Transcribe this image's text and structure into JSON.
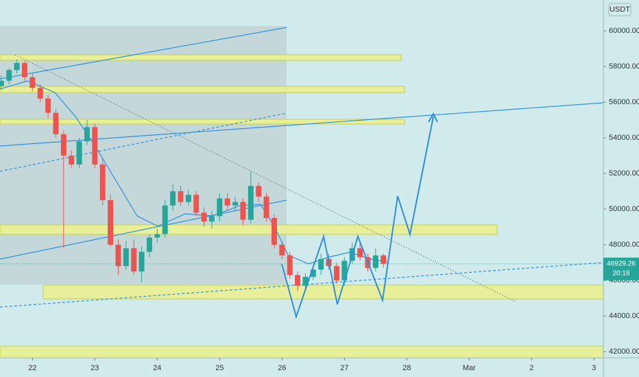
{
  "chart_data": {
    "type": "candlestick",
    "y_axis_label": "USDT",
    "x": [
      21.5,
      21.625,
      21.75,
      21.875,
      22,
      22.125,
      22.25,
      22.375,
      22.5,
      22.625,
      22.75,
      22.875,
      23,
      23.125,
      23.25,
      23.375,
      23.5,
      23.625,
      23.75,
      23.875,
      24,
      24.125,
      24.25,
      24.375,
      24.5,
      24.625,
      24.75,
      24.875,
      25,
      25.125,
      25.25,
      25.375,
      25.5,
      25.625,
      25.75,
      25.875,
      26,
      26.125,
      26.25,
      26.375,
      26.5,
      26.625,
      26.75,
      26.875,
      27,
      27.125,
      27.25,
      27.375,
      27.5,
      27.625
    ],
    "open": [
      56900,
      57200,
      57800,
      58200,
      57400,
      56800,
      56200,
      55400,
      54200,
      53000,
      52500,
      53800,
      54600,
      52500,
      50500,
      48000,
      46800,
      47800,
      46500,
      47600,
      48400,
      48600,
      50200,
      51000,
      50400,
      50800,
      49800,
      49300,
      49600,
      50600,
      50200,
      50400,
      49400,
      51300,
      50700,
      49500,
      48000,
      47400,
      46300,
      45700,
      46200,
      46600,
      47200,
      46800,
      46000,
      47100,
      47800,
      47300,
      46700,
      47400
    ],
    "high": [
      57500,
      57900,
      58400,
      58300,
      57600,
      57000,
      56400,
      55600,
      54400,
      53300,
      54000,
      55000,
      54800,
      52800,
      50800,
      48300,
      48200,
      48300,
      47900,
      48600,
      48900,
      50500,
      51400,
      51300,
      51100,
      51000,
      50100,
      49900,
      50900,
      50900,
      50700,
      50600,
      52100,
      51500,
      50900,
      49700,
      48200,
      47600,
      46500,
      46400,
      46800,
      47500,
      47500,
      47000,
      47300,
      48100,
      48200,
      47500,
      47800,
      47500
    ],
    "low": [
      56700,
      57000,
      57600,
      57200,
      56600,
      56000,
      55100,
      54000,
      47800,
      52300,
      52300,
      53600,
      52300,
      50200,
      47900,
      46300,
      46600,
      46300,
      45900,
      47300,
      48100,
      48400,
      49900,
      50200,
      50200,
      49600,
      49000,
      48900,
      49300,
      49900,
      49900,
      49100,
      49200,
      50400,
      49300,
      47800,
      47200,
      46100,
      45400,
      45500,
      46000,
      46300,
      46600,
      45800,
      45700,
      46900,
      47100,
      46500,
      46500,
      46700
    ],
    "close": [
      57200,
      57800,
      58200,
      57400,
      56800,
      56200,
      55400,
      54200,
      53000,
      52500,
      53800,
      54600,
      52500,
      50500,
      48000,
      46800,
      47800,
      46500,
      47600,
      48400,
      48600,
      50200,
      51000,
      50400,
      50800,
      49800,
      49300,
      49600,
      50600,
      50200,
      50400,
      49400,
      51300,
      50700,
      49500,
      48000,
      47400,
      46300,
      45700,
      46200,
      46600,
      47200,
      46800,
      46000,
      47100,
      47800,
      47300,
      46700,
      47400,
      46929
    ],
    "up_color": "#26a69a",
    "down_color": "#ef5350",
    "xlim": [
      21.48,
      31.15
    ],
    "xticks": [
      22,
      23,
      24,
      25,
      26,
      27,
      28,
      {
        "value": 29,
        "label": "Mar"
      },
      {
        "value": 30,
        "label": "2"
      },
      {
        "value": 31,
        "label": "3"
      }
    ],
    "ylim": [
      41654,
      61731
    ],
    "yticks": [
      {
        "value": 42000,
        "label": "42000.00"
      },
      {
        "value": 44000,
        "label": "44000.00"
      },
      {
        "value": 46000,
        "label": "46000.00"
      },
      {
        "value": 48000,
        "label": "48000.00"
      },
      {
        "value": 50000,
        "label": "50000.00"
      },
      {
        "value": 52000,
        "label": "52000.00"
      },
      {
        "value": 54000,
        "label": "54000.00"
      },
      {
        "value": 56000,
        "label": "56000.00"
      },
      {
        "value": 58000,
        "label": "58000.00"
      },
      {
        "value": 60000,
        "label": "60000.00"
      }
    ],
    "last_price": 46929.26,
    "countdown": "20:18"
  }
}
